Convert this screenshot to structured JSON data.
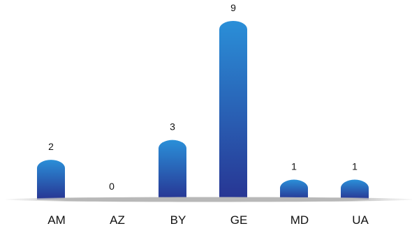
{
  "chart_data": {
    "type": "bar",
    "categories": [
      "AM",
      "AZ",
      "BY",
      "GE",
      "MD",
      "UA"
    ],
    "values": [
      2,
      0,
      3,
      9,
      1,
      1
    ],
    "title": "",
    "xlabel": "",
    "ylabel": "",
    "ylim": [
      0,
      9
    ],
    "grid": false,
    "legend": "none",
    "colors": {
      "bar_top": "#2a8fd8",
      "bar_bottom": "#283593",
      "baseline": "#b8b8b8"
    }
  }
}
